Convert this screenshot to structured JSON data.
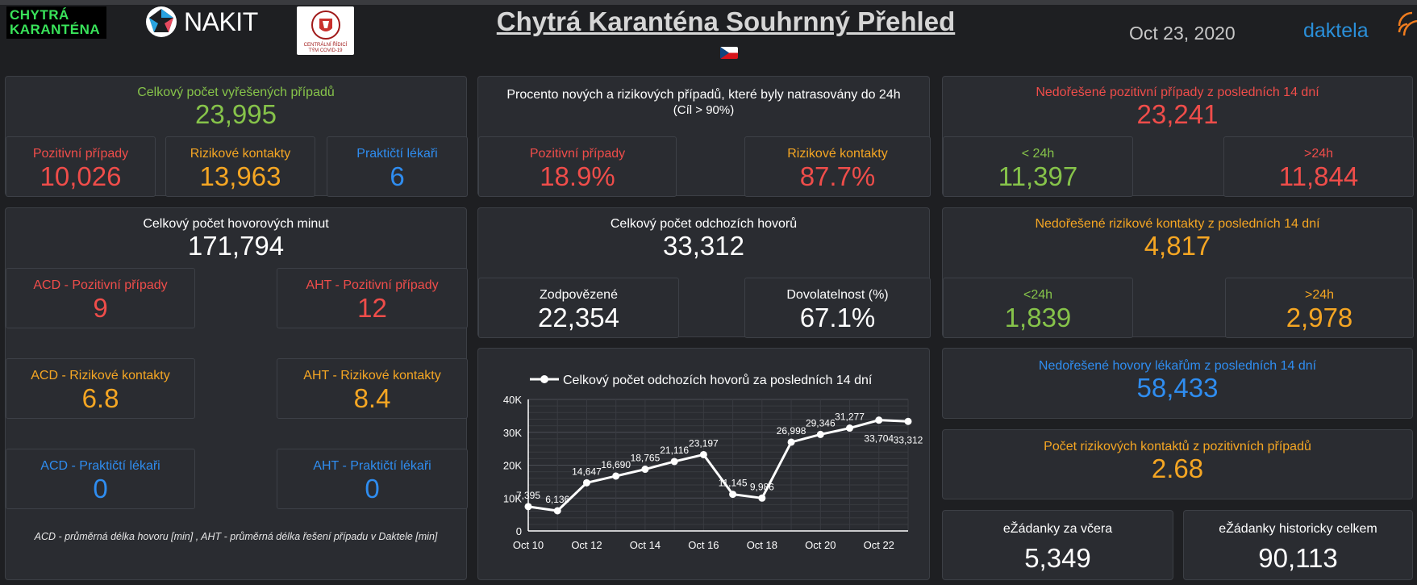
{
  "header": {
    "logo_chytra_line1": "CHYTRÁ",
    "logo_chytra_line2": "KARANTÉNA",
    "logo_nakit": "NAKIT",
    "logo_crt_text": "CENTRÁLNÍ ŘÍDICÍ TÝM COVID-19",
    "title": "Chytrá Karanténa Souhrnný Přehled",
    "date": "Oct 23, 2020",
    "daktela": "daktela"
  },
  "colors": {
    "green": "#86c34a",
    "red": "#ef4d4a",
    "orange": "#f5a623",
    "blue": "#2f8df0",
    "panel": "#2a2c31"
  },
  "resolved": {
    "label": "Celkový počet vyřešených případů",
    "value": "23,995",
    "positive_label": "Pozitivní případy",
    "positive_value": "10,026",
    "risky_label": "Rizikové kontakty",
    "risky_value": "13,963",
    "gp_label": "Praktičtí lékaři",
    "gp_value": "6"
  },
  "traced": {
    "label": "Procento nových a rizikových případů, které byly natrasovány do 24h",
    "goal": "(Cíl > 90%)",
    "positive_label": "Pozitivní případy",
    "positive_value": "18.9%",
    "risky_label": "Rizikové kontakty",
    "risky_value": "87.7%"
  },
  "unresolved_positive": {
    "label": "Nedořešené pozitivní případy z posledních 14 dní",
    "value": "23,241",
    "lt24_label": "< 24h",
    "lt24_value": "11,397",
    "gt24_label": ">24h",
    "gt24_value": "11,844"
  },
  "call_minutes": {
    "label": "Celkový počet hovorových minut",
    "value": "171,794",
    "acd_pos_label": "ACD - Pozitivní případy",
    "acd_pos_value": "9",
    "aht_pos_label": "AHT - Pozitivní případy",
    "aht_pos_value": "12",
    "acd_risk_label": "ACD - Rizikové kontakty",
    "acd_risk_value": "6.8",
    "aht_risk_label": "AHT - Rizikové kontakty",
    "aht_risk_value": "8.4",
    "acd_gp_label": "ACD - Praktičtí lékaři",
    "acd_gp_value": "0",
    "aht_gp_label": "AHT - Praktičtí lékaři",
    "aht_gp_value": "0",
    "footnote": "ACD - průměrná délka hovoru [min] , AHT - průměrná délka řešení případu v Daktele [min]"
  },
  "outgoing": {
    "label": "Celkový počet odchozích hovorů",
    "value": "33,312",
    "answered_label": "Zodpovězené",
    "answered_value": "22,354",
    "reach_label": "Dovolatelnost (%)",
    "reach_value": "67.1%"
  },
  "unresolved_risky": {
    "label": "Nedořešené rizikové kontakty z posledních 14 dní",
    "value": "4,817",
    "lt24_label": "<24h",
    "lt24_value": "1,839",
    "gt24_label": ">24h",
    "gt24_value": "2,978"
  },
  "unresolved_doctors": {
    "label": "Nedořešené hovory lékařům z posledních 14 dní",
    "value": "58,433"
  },
  "risky_per_positive": {
    "label": "Počet rizikových kontaktů z pozitivních případů",
    "value": "2.68"
  },
  "ezadanky_yesterday": {
    "label": "eŽádanky za včera",
    "value": "5,349"
  },
  "ezadanky_total": {
    "label": "eŽádanky historicky celkem",
    "value": "90,113"
  },
  "chart_data": {
    "type": "line",
    "legend": "Celkový počet odchozích hovorů za posledních 14 dní",
    "x_ticks": [
      "Oct 10",
      "Oct 12",
      "Oct 14",
      "Oct 16",
      "Oct 18",
      "Oct 20",
      "Oct 22"
    ],
    "y_ticks": [
      "0",
      "10K",
      "20K",
      "30K",
      "40K"
    ],
    "ylim": [
      0,
      40000
    ],
    "xlim": [
      10,
      23
    ],
    "series": [
      {
        "name": "Celkový počet odchozích hovorů",
        "x": [
          10,
          11,
          12,
          13,
          14,
          15,
          16,
          17,
          18,
          19,
          20,
          21,
          22,
          23
        ],
        "values": [
          7395,
          6136,
          14647,
          16690,
          18765,
          21116,
          23197,
          11145,
          9986,
          26998,
          29346,
          31277,
          33704,
          33312
        ],
        "labels": [
          "7,395",
          "6,136",
          "14,647",
          "16,690",
          "18,765",
          "21,116",
          "23,197",
          "11,145",
          "9,986",
          "26,998",
          "29,346",
          "31,277",
          "33,704",
          "33,312"
        ]
      }
    ]
  }
}
